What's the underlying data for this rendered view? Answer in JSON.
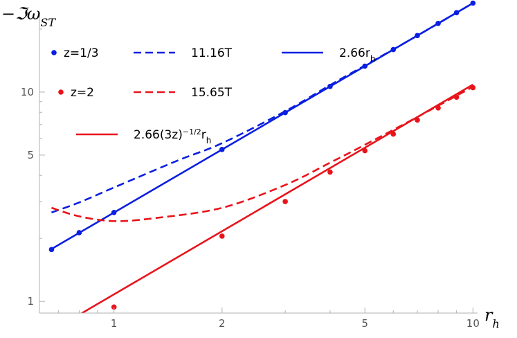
{
  "chart_data": {
    "type": "line",
    "title": "",
    "xlabel": "r_h",
    "ylabel": "−ℑω_ST",
    "xscale": "log",
    "yscale": "log",
    "xlim": [
      0.62,
      10.3
    ],
    "ylim": [
      0.88,
      24
    ],
    "grid": false,
    "legend_placement": "top-left",
    "x_ticks": [
      1,
      2,
      5,
      10
    ],
    "y_ticks": [
      1,
      5,
      10
    ],
    "colors": {
      "blue": "#0a1fe0",
      "red": "#e8141b"
    },
    "series": [
      {
        "name": "z=1/3",
        "style": "points",
        "color": "#0a1fe0",
        "x": [
          0.67,
          0.8,
          1,
          2,
          3,
          4,
          5,
          6,
          7,
          8,
          9,
          10
        ],
        "y": [
          1.77,
          2.13,
          2.66,
          5.32,
          7.98,
          10.64,
          13.3,
          15.96,
          18.62,
          21.28,
          23.94,
          26.6
        ]
      },
      {
        "name": "11.16T",
        "style": "dashed",
        "color": "#0a1fe0",
        "x": [
          0.67,
          0.8,
          1,
          1.5,
          2,
          3,
          4,
          5,
          7,
          10
        ],
        "y": [
          2.66,
          2.97,
          3.5,
          4.7,
          5.7,
          8.1,
          10.8,
          13.4,
          18.6,
          26.6
        ]
      },
      {
        "name": "2.66r_h",
        "style": "solid",
        "color": "#0a1fe0",
        "x": [
          0.67,
          10
        ],
        "y": [
          1.78,
          26.6
        ]
      },
      {
        "name": "z=2",
        "style": "points",
        "color": "#e8141b",
        "x": [
          1,
          2,
          3,
          4,
          5,
          6,
          7,
          8,
          9,
          10
        ],
        "y": [
          0.94,
          2.05,
          3.0,
          4.15,
          5.25,
          6.3,
          7.35,
          8.4,
          9.45,
          10.5
        ]
      },
      {
        "name": "15.65T",
        "style": "dashed",
        "color": "#e8141b",
        "x": [
          0.67,
          0.8,
          1,
          1.3,
          2,
          3,
          4,
          5,
          7,
          10
        ],
        "y": [
          2.8,
          2.55,
          2.42,
          2.5,
          2.8,
          3.6,
          4.6,
          5.6,
          7.6,
          10.6
        ]
      },
      {
        "name": "2.66(3z)^−1/2 r_h",
        "style": "solid",
        "color": "#e8141b",
        "x": [
          0.75,
          10
        ],
        "y": [
          0.81,
          10.86
        ]
      }
    ],
    "legend": [
      {
        "label": "z=1/3",
        "color": "#0a1fe0",
        "style": "points"
      },
      {
        "label": "11.16T",
        "color": "#0a1fe0",
        "style": "dashed"
      },
      {
        "label": "2.66r",
        "sub": "h",
        "color": "#0a1fe0",
        "style": "solid"
      },
      {
        "label": "z=2",
        "color": "#e8141b",
        "style": "points"
      },
      {
        "label": "15.65T",
        "color": "#e8141b",
        "style": "dashed"
      },
      {
        "label": "2.66(3z)",
        "sup": "−1/2",
        "label2": "r",
        "sub": "h",
        "color": "#e8141b",
        "style": "solid"
      }
    ]
  }
}
